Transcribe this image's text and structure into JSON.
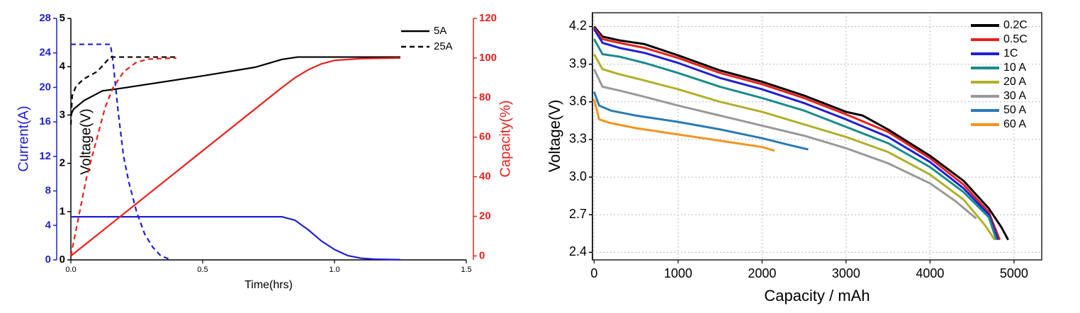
{
  "chart_data": [
    {
      "type": "line",
      "xlabel": "Time(hrs)",
      "ylabel": "Current(A)",
      "ycolor": "#1f1fd6",
      "y3label": "Voltage(V)",
      "y3color": "#000000",
      "y2label": "Capacity(%)",
      "y2color": "#e8201c",
      "xlim": [
        0,
        1.5
      ],
      "xticks": [
        {
          "value": 0,
          "label": "0.0"
        },
        {
          "value": 0.5,
          "label": "0.5"
        },
        {
          "value": 1,
          "label": "1.0"
        },
        {
          "value": 1.5,
          "label": "1.5"
        }
      ],
      "ylim": [
        0,
        28
      ],
      "yticks": [
        0,
        4,
        8,
        12,
        16,
        20,
        24,
        28
      ],
      "y3lim": [
        0,
        5
      ],
      "y3ticks": [
        0,
        1,
        2,
        3,
        4,
        5
      ],
      "y2lim": [
        -2,
        120
      ],
      "y2ticks": [
        0,
        20,
        40,
        60,
        80,
        100,
        120
      ],
      "grid": false,
      "legend": {
        "position": "upper right",
        "entries": [
          {
            "label": "5A",
            "color": "#000000",
            "dash": "solid"
          },
          {
            "label": "25A",
            "color": "#000000",
            "dash": "dashed"
          }
        ]
      },
      "series": [
        {
          "color": "#1f1fd6",
          "dash": "solid",
          "axis": "y",
          "x": [
            0,
            0.8,
            0.85,
            0.9,
            0.95,
            1.0,
            1.05,
            1.1,
            1.15,
            1.25
          ],
          "values": [
            5,
            5,
            4.6,
            3.5,
            2.2,
            1.2,
            0.5,
            0.2,
            0.08,
            0.02
          ]
        },
        {
          "color": "#1f1fd6",
          "dash": "dashed",
          "axis": "y",
          "x": [
            0,
            0.15,
            0.16,
            0.18,
            0.2,
            0.22,
            0.25,
            0.28,
            0.31,
            0.34,
            0.38
          ],
          "values": [
            25,
            25,
            23,
            17,
            12,
            9,
            5.5,
            3,
            1.5,
            0.5,
            0
          ]
        },
        {
          "color": "#000000",
          "dash": "solid",
          "axis": "y3",
          "x": [
            0,
            0.01,
            0.05,
            0.12,
            0.2,
            0.5,
            0.7,
            0.8,
            0.86,
            1.25
          ],
          "values": [
            3.0,
            3.12,
            3.3,
            3.5,
            3.56,
            3.81,
            3.99,
            4.15,
            4.2,
            4.2
          ]
        },
        {
          "color": "#000000",
          "dash": "dashed",
          "axis": "y3",
          "x": [
            0,
            0.005,
            0.02,
            0.05,
            0.1,
            0.15,
            0.4
          ],
          "values": [
            2.8,
            3.4,
            3.6,
            3.75,
            3.9,
            4.2,
            4.2
          ]
        },
        {
          "color": "#e8201c",
          "dash": "solid",
          "axis": "y2",
          "x": [
            0,
            0.8,
            0.85,
            0.9,
            0.95,
            1.0,
            1.1,
            1.25
          ],
          "values": [
            0,
            85,
            90,
            94,
            97,
            98.8,
            99.7,
            100
          ]
        },
        {
          "color": "#e8201c",
          "dash": "dashed",
          "axis": "y2",
          "x": [
            0,
            0.03,
            0.06,
            0.1,
            0.13,
            0.16,
            0.2,
            0.25,
            0.3,
            0.4
          ],
          "values": [
            0,
            20,
            40,
            60,
            75,
            85,
            93,
            98,
            99.5,
            100
          ]
        }
      ]
    },
    {
      "type": "line",
      "xlabel": "Capacity / mAh",
      "ylabel": "Voltage(V)",
      "ycolor": "#000000",
      "xlim": [
        -20,
        5330
      ],
      "xticks": [
        0,
        1000,
        2000,
        3000,
        4000,
        5000
      ],
      "ylim": [
        2.34,
        4.31
      ],
      "yticks": [
        2.4,
        2.7,
        {
          "value": 3,
          "label": "3.0"
        },
        3.3,
        3.6,
        3.9,
        4.2
      ],
      "grid": true,
      "legend": {
        "position": "upper right"
      },
      "series": [
        {
          "name": "0.2C",
          "color": "#000000",
          "x": [
            0,
            100,
            300,
            600,
            1000,
            1500,
            2000,
            2500,
            3000,
            3200,
            3500,
            4000,
            4400,
            4700,
            4850,
            4930
          ],
          "values": [
            4.2,
            4.12,
            4.09,
            4.06,
            3.97,
            3.85,
            3.76,
            3.65,
            3.52,
            3.49,
            3.38,
            3.17,
            2.97,
            2.75,
            2.6,
            2.5
          ]
        },
        {
          "name": "0.5C",
          "color": "#e8201c",
          "x": [
            0,
            100,
            300,
            600,
            1000,
            1500,
            2000,
            2500,
            3000,
            3500,
            4000,
            4400,
            4700,
            4830
          ],
          "values": [
            4.19,
            4.1,
            4.07,
            4.03,
            3.95,
            3.83,
            3.74,
            3.63,
            3.5,
            3.36,
            3.15,
            2.94,
            2.72,
            2.5
          ]
        },
        {
          "name": "1C",
          "color": "#1f1fd6",
          "x": [
            0,
            100,
            300,
            600,
            1000,
            1500,
            2000,
            2500,
            3000,
            3500,
            4000,
            4400,
            4700,
            4810
          ],
          "values": [
            4.18,
            4.07,
            4.03,
            3.99,
            3.91,
            3.79,
            3.7,
            3.59,
            3.46,
            3.32,
            3.12,
            2.91,
            2.7,
            2.5
          ]
        },
        {
          "name": "10 A",
          "color": "#1a8c8c",
          "x": [
            0,
            100,
            300,
            600,
            1000,
            1500,
            2000,
            2500,
            3000,
            3500,
            4000,
            4400,
            4700,
            4790
          ],
          "values": [
            4.1,
            3.98,
            3.96,
            3.91,
            3.83,
            3.72,
            3.63,
            3.53,
            3.4,
            3.27,
            3.08,
            2.88,
            2.68,
            2.5
          ]
        },
        {
          "name": "20 A",
          "color": "#b0b02a",
          "x": [
            0,
            100,
            300,
            600,
            1000,
            1500,
            2000,
            2500,
            3000,
            3500,
            4000,
            4400,
            4650,
            4770
          ],
          "values": [
            3.98,
            3.86,
            3.82,
            3.77,
            3.7,
            3.6,
            3.52,
            3.42,
            3.32,
            3.2,
            3.02,
            2.82,
            2.62,
            2.5
          ]
        },
        {
          "name": "30 A",
          "color": "#999999",
          "x": [
            0,
            100,
            300,
            600,
            1000,
            1500,
            2000,
            2500,
            3000,
            3500,
            4000,
            4300,
            4550
          ],
          "values": [
            3.86,
            3.72,
            3.69,
            3.64,
            3.57,
            3.49,
            3.41,
            3.33,
            3.23,
            3.11,
            2.95,
            2.81,
            2.67
          ]
        },
        {
          "name": "50 A",
          "color": "#2a7ab5",
          "x": [
            0,
            60,
            200,
            500,
            1000,
            1500,
            2000,
            2300,
            2550
          ],
          "values": [
            3.68,
            3.57,
            3.53,
            3.49,
            3.44,
            3.38,
            3.31,
            3.26,
            3.22
          ]
        },
        {
          "name": "60 A",
          "color": "#f5931f",
          "x": [
            0,
            60,
            200,
            500,
            1000,
            1500,
            2000,
            2150
          ],
          "values": [
            3.62,
            3.46,
            3.43,
            3.39,
            3.34,
            3.29,
            3.24,
            3.21
          ]
        }
      ]
    }
  ]
}
